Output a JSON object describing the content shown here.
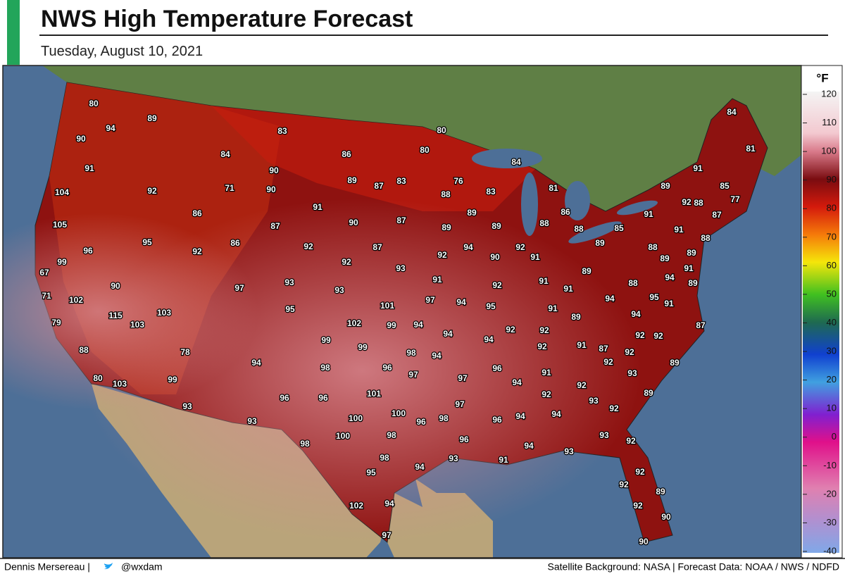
{
  "header": {
    "title": "NWS High Temperature Forecast",
    "subtitle": "Tuesday, August 10, 2021"
  },
  "legend": {
    "unit": "°F",
    "ticks": [
      120,
      110,
      100,
      90,
      80,
      70,
      60,
      50,
      40,
      30,
      20,
      10,
      0,
      -10,
      -20,
      -30,
      -40
    ]
  },
  "labels": [
    80,
    94,
    89,
    90,
    84,
    83,
    86,
    80,
    80,
    84,
    81,
    91,
    89,
    83,
    76,
    84,
    90,
    91,
    104,
    92,
    71,
    90,
    87,
    88,
    83,
    81,
    89,
    85,
    77,
    92,
    88,
    91,
    86,
    89,
    86,
    87,
    91,
    105,
    87,
    90,
    87,
    89,
    89,
    88,
    88,
    85,
    91,
    88,
    95,
    86,
    92,
    87,
    94,
    92,
    89,
    88,
    96,
    92,
    92,
    90,
    91,
    89,
    99,
    92,
    93,
    89,
    89,
    91,
    67,
    93,
    91,
    92,
    91,
    91,
    94,
    89,
    88,
    90,
    97,
    93,
    97,
    94,
    95,
    71,
    102,
    101,
    91,
    94,
    95,
    91,
    95,
    115,
    103,
    89,
    94,
    79,
    103,
    102,
    99,
    94,
    92,
    92,
    87,
    94,
    92,
    92,
    99,
    94,
    91,
    92,
    87,
    88,
    99,
    98,
    94,
    92,
    78,
    94,
    98,
    96,
    97,
    96,
    92,
    89,
    80,
    103,
    99,
    91,
    97,
    94,
    93,
    92,
    101,
    96,
    96,
    92,
    89,
    93,
    97,
    93,
    92,
    100,
    100,
    96,
    98,
    96,
    94,
    94,
    93,
    98,
    100,
    98,
    96,
    93,
    92,
    94,
    93,
    98,
    93,
    91,
    94,
    95,
    92,
    92,
    89,
    102,
    94,
    92,
    90,
    97,
    90
  ],
  "footer": {
    "credit": "Dennis Mersereau |",
    "handle": "@wxdam",
    "sources": "Satellite Background: NASA | Forecast Data: NOAA / NWS / NDFD"
  }
}
